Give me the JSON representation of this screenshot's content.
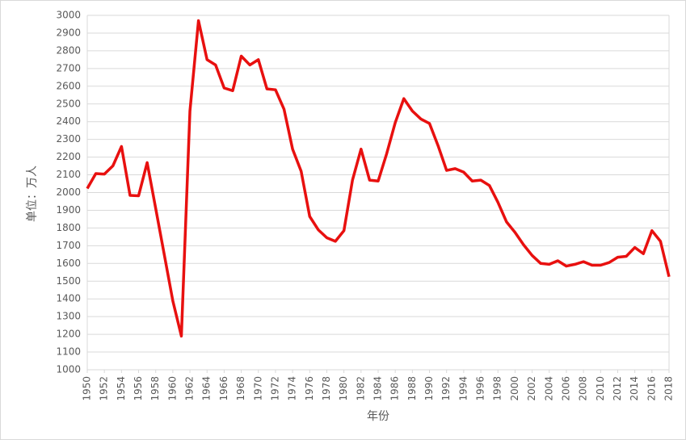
{
  "chart_data": {
    "type": "line",
    "y_label": "单位：万人",
    "x_label": "年份",
    "x": [
      1950,
      1951,
      1952,
      1953,
      1954,
      1955,
      1956,
      1957,
      1958,
      1959,
      1960,
      1961,
      1962,
      1963,
      1964,
      1965,
      1966,
      1967,
      1968,
      1969,
      1970,
      1971,
      1972,
      1973,
      1974,
      1975,
      1976,
      1977,
      1978,
      1979,
      1980,
      1981,
      1982,
      1983,
      1984,
      1985,
      1986,
      1987,
      1988,
      1989,
      1990,
      1991,
      1992,
      1993,
      1994,
      1995,
      1996,
      1997,
      1998,
      1999,
      2000,
      2001,
      2002,
      2003,
      2004,
      2005,
      2006,
      2007,
      2008,
      2009,
      2010,
      2011,
      2012,
      2013,
      2014,
      2015,
      2016,
      2017,
      2018
    ],
    "values": [
      2023,
      2107,
      2104,
      2151,
      2260,
      1984,
      1982,
      2169,
      1910,
      1650,
      1389,
      1190,
      2460,
      2970,
      2750,
      2720,
      2590,
      2575,
      2770,
      2720,
      2750,
      2585,
      2580,
      2470,
      2245,
      2120,
      1865,
      1790,
      1745,
      1725,
      1785,
      2070,
      2245,
      2070,
      2065,
      2220,
      2395,
      2530,
      2460,
      2415,
      2390,
      2265,
      2125,
      2135,
      2115,
      2065,
      2070,
      2040,
      1945,
      1835,
      1775,
      1705,
      1645,
      1600,
      1595,
      1615,
      1585,
      1595,
      1610,
      1590,
      1590,
      1605,
      1635,
      1640,
      1690,
      1655,
      1785,
      1725,
      1525
    ],
    "color": "#e8100f",
    "xlim": [
      1950,
      2018
    ],
    "xticks": [
      1950,
      1952,
      1954,
      1956,
      1958,
      1960,
      1962,
      1964,
      1966,
      1968,
      1970,
      1972,
      1974,
      1976,
      1978,
      1980,
      1982,
      1984,
      1986,
      1988,
      1990,
      1992,
      1994,
      1996,
      1998,
      2000,
      2002,
      2004,
      2006,
      2008,
      2010,
      2012,
      2014,
      2016,
      2018
    ],
    "ylim": [
      1000,
      3000
    ],
    "yticks": [
      1000,
      1100,
      1200,
      1300,
      1400,
      1500,
      1600,
      1700,
      1800,
      1900,
      2000,
      2100,
      2200,
      2300,
      2400,
      2500,
      2600,
      2700,
      2800,
      2900,
      3000
    ],
    "grid": true
  }
}
